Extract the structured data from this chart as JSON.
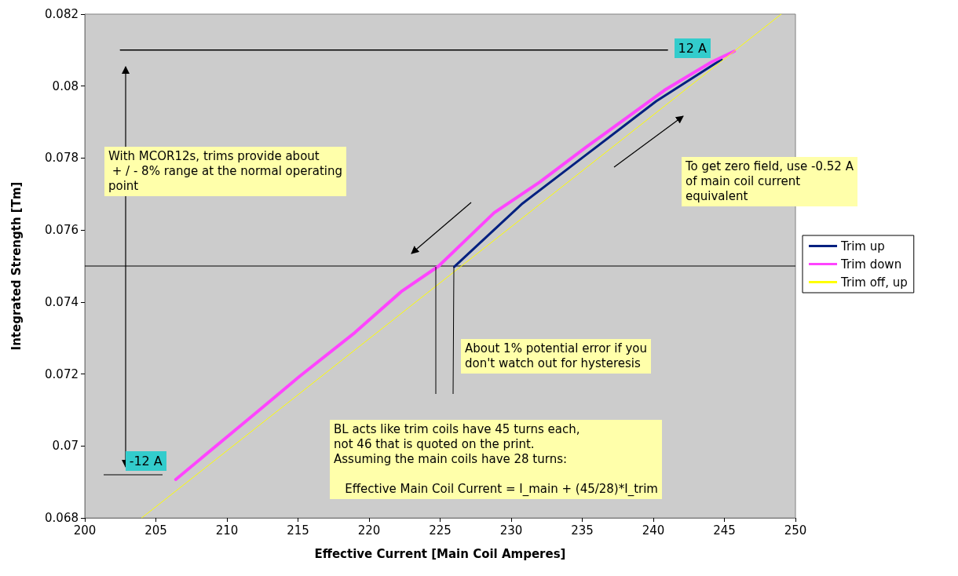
{
  "chart_data": {
    "type": "line",
    "xlabel": "Effective Current [Main Coil Amperes]",
    "ylabel": "Integrated Strength [Tm]",
    "xlim": [
      200,
      250
    ],
    "xticks": [
      200,
      205,
      210,
      215,
      220,
      225,
      230,
      235,
      240,
      245,
      250
    ],
    "ylim": [
      0.068,
      0.082
    ],
    "yticks": [
      0.068,
      0.07,
      0.072,
      0.074,
      0.076,
      0.078,
      0.08,
      0.082
    ],
    "series": [
      {
        "name": "Trim up",
        "color": "#002080",
        "x": [
          226,
          230.8,
          235.3,
          240.2,
          244.8
        ],
        "values": [
          0.07498,
          0.07674,
          0.0781,
          0.07958,
          0.08074
        ]
      },
      {
        "name": "Trim down",
        "color": "#ff44ff",
        "x": [
          206.4,
          212.2,
          215.1,
          219,
          222.3,
          224.9,
          228.8,
          232,
          235.3,
          240.8,
          244.1,
          245.7
        ],
        "values": [
          0.06907,
          0.07097,
          0.07193,
          0.07315,
          0.0743,
          0.075,
          0.07648,
          0.07733,
          0.07831,
          0.07989,
          0.08067,
          0.08097
        ]
      },
      {
        "color": "#000000",
        "x": [
          202.5,
          241
        ],
        "values": [
          0.081,
          0.081
        ]
      },
      {
        "name": "Trim off, up",
        "color": "#ffff00",
        "x": [
          204,
          249
        ],
        "values": [
          0.068,
          0.082
        ]
      }
    ],
    "ref_lines": [
      {
        "axis": "y",
        "value": 0.075,
        "color": "#000000"
      }
    ],
    "annotations": [
      {
        "text": "12 A",
        "x": 245,
        "y": 0.081
      },
      {
        "text": "-12 A",
        "x": 206.5,
        "y": 0.0692
      },
      "With MCOR12s, trims provide about\n + / - 8% range at the normal operating\npoint",
      "To get zero field, use -0.52 A\nof main coil current\nequivalent",
      "About 1% potential error if you\ndon't watch out for hysteresis",
      "BL acts like trim coils have 45 turns each,\nnot 46 that is quoted on the print.\nAssuming the main coils have 28 turns:\n\n   Effective Main Coil Current = I_main + (45/28)*I_trim"
    ],
    "legend": "right",
    "marker": "none",
    "line_style": "solid"
  }
}
